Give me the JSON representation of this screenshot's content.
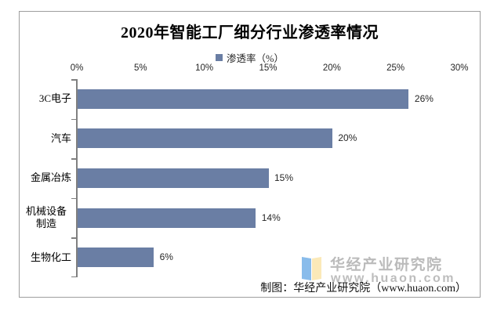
{
  "title": "2020年智能工厂细分行业渗透率情况",
  "legend": {
    "label": "渗透率（%）"
  },
  "chart_data": {
    "type": "bar",
    "orientation": "horizontal",
    "title": "2020年智能工厂细分行业渗透率情况",
    "series_name": "渗透率（%）",
    "categories": [
      "3C电子",
      "汽车",
      "金属冶炼",
      "机械设备制造",
      "生物化工"
    ],
    "values": [
      26,
      20,
      15,
      14,
      6
    ],
    "value_labels": [
      "26%",
      "20%",
      "15%",
      "14%",
      "6%"
    ],
    "x_ticks": [
      "0%",
      "5%",
      "10%",
      "15%",
      "20%",
      "25%",
      "30%"
    ],
    "xlim": [
      0,
      30
    ],
    "xlabel": "",
    "ylabel": "",
    "grid": false,
    "legend_position": "top-center",
    "bar_color": "#6A7EA4",
    "axis_color": "#808080"
  },
  "watermark": {
    "icon": "open-book-icon",
    "brand": "华经产业研究院",
    "url": "www.huaon.com"
  },
  "caption": "制图：华经产业研究院（www.huaon.com）"
}
